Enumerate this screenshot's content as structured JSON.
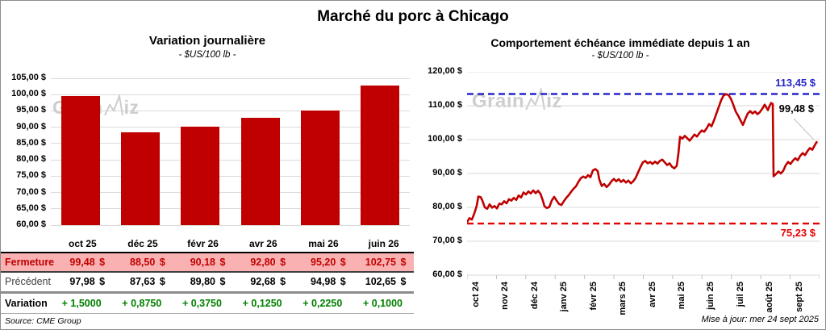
{
  "title": "Marché du porc à Chicago",
  "colors": {
    "red": "#C00000",
    "bright_red": "#E60000",
    "pink": "#F9B1B1",
    "green": "#008000",
    "blue": "#2626C9",
    "grid": "#DADADA",
    "watermark": "#CBCBCB",
    "leader": "#BFBFBF"
  },
  "watermark": {
    "part1": "Grain",
    "part2": "iz"
  },
  "left_chart": {
    "title": "Variation journalière",
    "subtitle": "- $US/100 lb -",
    "y_ticks": [
      "105,00 $",
      "100,00 $",
      "95,00 $",
      "90,00 $",
      "85,00 $",
      "80,00 $",
      "75,00 $",
      "70,00 $",
      "65,00 $",
      "60,00 $"
    ]
  },
  "right_chart": {
    "title": "Comportement échéance immédiate depuis 1 an",
    "subtitle": "- $US/100 lb -",
    "y_ticks": [
      "120,00 $",
      "110,00 $",
      "100,00 $",
      "90,00 $",
      "80,00 $",
      "70,00 $",
      "60,00 $"
    ],
    "x_ticks": [
      "oct 24",
      "nov 24",
      "déc 24",
      "janv 25",
      "févr 25",
      "mars 25",
      "avr 25",
      "mai 25",
      "juin 25",
      "juil 25",
      "août 25",
      "sept 25"
    ],
    "annotations": {
      "resistance": "113,45 $",
      "last": "99,48 $",
      "support": "75,23 $"
    }
  },
  "table": {
    "columns": [
      "oct 25",
      "déc 25",
      "févr 26",
      "avr 26",
      "mai 26",
      "juin 26"
    ],
    "rows": [
      {
        "style": "fermeture",
        "label": "Fermeture",
        "currency": "$",
        "values": [
          "99,48",
          "88,50",
          "90,18",
          "92,80",
          "95,20",
          "102,75"
        ]
      },
      {
        "style": "precedent",
        "label": "Précédent",
        "currency": "$",
        "values": [
          "97,98",
          "87,63",
          "89,80",
          "92,68",
          "94,98",
          "102,65"
        ]
      },
      {
        "style": "variation",
        "label": "Variation",
        "currency": "",
        "values": [
          "+ 1,5000",
          "+ 0,8750",
          "+ 0,3750",
          "+ 0,1250",
          "+ 0,2250",
          "+ 0,1000"
        ]
      }
    ]
  },
  "footer": {
    "source": "Source: CME Group",
    "updated": "Mise à jour: mer 24 sept 2025"
  },
  "chart_data": [
    {
      "type": "bar",
      "title": "Variation journalière",
      "ylabel": "$US/100 lb",
      "categories": [
        "oct 25",
        "déc 25",
        "févr 26",
        "avr 26",
        "mai 26",
        "juin 26"
      ],
      "values": [
        99.48,
        88.5,
        90.18,
        92.8,
        95.2,
        102.75
      ],
      "series": [
        {
          "name": "Fermeture",
          "values": [
            99.48,
            88.5,
            90.18,
            92.8,
            95.2,
            102.75
          ]
        },
        {
          "name": "Précédent",
          "values": [
            97.98,
            87.63,
            89.8,
            92.68,
            94.98,
            102.65
          ]
        },
        {
          "name": "Variation",
          "values": [
            1.5,
            0.875,
            0.375,
            0.125,
            0.225,
            0.1
          ]
        }
      ],
      "ylim": [
        60,
        105
      ],
      "ytick_step": 5,
      "grid": true,
      "bar_color": "#C00000"
    },
    {
      "type": "line",
      "title": "Comportement échéance immédiate depuis 1 an",
      "ylabel": "$US/100 lb",
      "xlabel": "",
      "x_categories": [
        "oct 24",
        "nov 24",
        "déc 24",
        "janv 25",
        "févr 25",
        "mars 25",
        "avr 25",
        "mai 25",
        "juin 25",
        "juil 25",
        "août 25",
        "sept 25"
      ],
      "ylim": [
        60,
        120
      ],
      "ytick_step": 10,
      "grid": true,
      "resistance": 113.45,
      "support": 75.23,
      "last": 99.48,
      "points": [
        [
          0,
          75.6
        ],
        [
          3,
          76.8
        ],
        [
          6,
          76.4
        ],
        [
          9,
          78.2
        ],
        [
          12,
          80.5
        ],
        [
          14,
          83.2
        ],
        [
          17,
          83.0
        ],
        [
          19,
          82.0
        ],
        [
          22,
          80.0
        ],
        [
          25,
          79.6
        ],
        [
          28,
          80.9
        ],
        [
          31,
          79.9
        ],
        [
          34,
          80.4
        ],
        [
          37,
          79.7
        ],
        [
          40,
          81.1
        ],
        [
          43,
          80.9
        ],
        [
          46,
          81.8
        ],
        [
          49,
          81.2
        ],
        [
          52,
          82.4
        ],
        [
          55,
          82.0
        ],
        [
          58,
          82.8
        ],
        [
          61,
          82.2
        ],
        [
          64,
          83.5
        ],
        [
          67,
          82.9
        ],
        [
          70,
          84.4
        ],
        [
          73,
          83.8
        ],
        [
          76,
          84.7
        ],
        [
          79,
          84.1
        ],
        [
          82,
          85.0
        ],
        [
          85,
          84.2
        ],
        [
          88,
          84.9
        ],
        [
          91,
          84.0
        ],
        [
          94,
          82.0
        ],
        [
          96,
          80.3
        ],
        [
          99,
          79.8
        ],
        [
          102,
          80.1
        ],
        [
          105,
          82.0
        ],
        [
          108,
          83.1
        ],
        [
          111,
          82.0
        ],
        [
          114,
          81.0
        ],
        [
          117,
          80.7
        ],
        [
          120,
          81.8
        ],
        [
          123,
          82.8
        ],
        [
          126,
          83.6
        ],
        [
          129,
          84.6
        ],
        [
          132,
          85.5
        ],
        [
          135,
          86.2
        ],
        [
          138,
          87.5
        ],
        [
          141,
          88.6
        ],
        [
          144,
          89.1
        ],
        [
          147,
          88.7
        ],
        [
          150,
          89.5
        ],
        [
          153,
          88.9
        ],
        [
          156,
          90.9
        ],
        [
          159,
          91.3
        ],
        [
          162,
          90.7
        ],
        [
          164,
          88.2
        ],
        [
          167,
          86.3
        ],
        [
          170,
          86.9
        ],
        [
          173,
          86.0
        ],
        [
          176,
          86.7
        ],
        [
          179,
          87.7
        ],
        [
          182,
          88.4
        ],
        [
          185,
          87.7
        ],
        [
          188,
          88.3
        ],
        [
          191,
          87.5
        ],
        [
          194,
          88.1
        ],
        [
          197,
          87.3
        ],
        [
          200,
          87.9
        ],
        [
          203,
          87.1
        ],
        [
          206,
          87.7
        ],
        [
          209,
          88.7
        ],
        [
          212,
          90.3
        ],
        [
          215,
          91.9
        ],
        [
          218,
          93.3
        ],
        [
          221,
          93.7
        ],
        [
          224,
          93.0
        ],
        [
          227,
          93.4
        ],
        [
          230,
          92.8
        ],
        [
          233,
          93.5
        ],
        [
          236,
          92.9
        ],
        [
          239,
          93.7
        ],
        [
          242,
          94.1
        ],
        [
          245,
          93.3
        ],
        [
          248,
          92.5
        ],
        [
          251,
          93.0
        ],
        [
          254,
          92.0
        ],
        [
          257,
          91.5
        ],
        [
          260,
          92.3
        ],
        [
          262,
          95.8
        ],
        [
          264,
          100.8
        ],
        [
          267,
          100.3
        ],
        [
          270,
          101.1
        ],
        [
          273,
          100.4
        ],
        [
          276,
          99.7
        ],
        [
          279,
          100.6
        ],
        [
          282,
          101.5
        ],
        [
          285,
          100.9
        ],
        [
          288,
          101.9
        ],
        [
          291,
          102.7
        ],
        [
          294,
          102.3
        ],
        [
          297,
          103.3
        ],
        [
          300,
          104.6
        ],
        [
          303,
          103.9
        ],
        [
          306,
          105.6
        ],
        [
          309,
          107.6
        ],
        [
          312,
          109.6
        ],
        [
          315,
          111.6
        ],
        [
          318,
          113.0
        ],
        [
          321,
          113.4
        ],
        [
          324,
          113.2
        ],
        [
          327,
          112.1
        ],
        [
          330,
          110.3
        ],
        [
          333,
          108.3
        ],
        [
          336,
          107.1
        ],
        [
          339,
          105.7
        ],
        [
          342,
          104.3
        ],
        [
          345,
          106.1
        ],
        [
          348,
          107.7
        ],
        [
          351,
          108.4
        ],
        [
          354,
          107.7
        ],
        [
          357,
          108.3
        ],
        [
          360,
          107.5
        ],
        [
          363,
          108.1
        ],
        [
          366,
          109.1
        ],
        [
          369,
          110.3
        ],
        [
          371,
          109.5
        ],
        [
          373,
          108.7
        ],
        [
          375,
          109.9
        ],
        [
          377,
          110.8
        ],
        [
          379,
          110.5
        ],
        [
          380,
          89.2
        ],
        [
          383,
          89.8
        ],
        [
          386,
          90.6
        ],
        [
          389,
          90.0
        ],
        [
          392,
          90.8
        ],
        [
          395,
          92.4
        ],
        [
          398,
          93.4
        ],
        [
          401,
          92.8
        ],
        [
          404,
          93.8
        ],
        [
          407,
          94.5
        ],
        [
          410,
          93.9
        ],
        [
          413,
          95.2
        ],
        [
          416,
          96.0
        ],
        [
          419,
          95.4
        ],
        [
          422,
          96.6
        ],
        [
          425,
          97.5
        ],
        [
          428,
          97.0
        ],
        [
          431,
          98.3
        ],
        [
          434,
          99.48
        ]
      ]
    }
  ]
}
